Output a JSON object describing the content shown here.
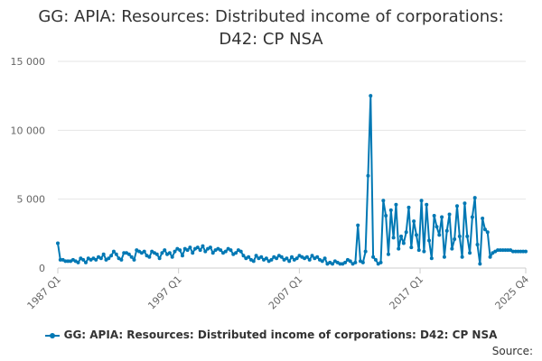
{
  "chart_data": {
    "type": "line",
    "title_line1": "GG: APIA: Resources: Distributed income of corporations:",
    "title_line2": "D42: CP NSA",
    "xlabel": "",
    "ylabel": "",
    "ylim": [
      0,
      15000
    ],
    "yticks": [
      0,
      5000,
      10000,
      15000
    ],
    "ytick_labels": [
      "0",
      "5 000",
      "10 000",
      "15 000"
    ],
    "xticks": [
      "1987 Q1",
      "1997 Q1",
      "2007 Q1",
      "2017 Q1",
      "2025 Q4"
    ],
    "x_start": "1987 Q1",
    "x_end": "2025 Q4",
    "grid": true,
    "legend_position": "bottom",
    "color": "#0078b4",
    "series": [
      {
        "name": "GG: APIA: Resources: Distributed income of corporations: D42: CP NSA",
        "values": [
          1800,
          600,
          600,
          500,
          500,
          500,
          600,
          500,
          400,
          700,
          600,
          400,
          700,
          600,
          700,
          600,
          800,
          700,
          1000,
          600,
          700,
          900,
          1200,
          1000,
          700,
          600,
          1100,
          1100,
          1000,
          800,
          600,
          1300,
          1200,
          1100,
          1200,
          900,
          800,
          1200,
          1100,
          1000,
          700,
          1100,
          1300,
          1000,
          1100,
          800,
          1200,
          1400,
          1300,
          900,
          1400,
          1300,
          1500,
          1100,
          1400,
          1500,
          1300,
          1600,
          1200,
          1400,
          1500,
          1100,
          1300,
          1400,
          1300,
          1100,
          1200,
          1400,
          1300,
          1000,
          1100,
          1300,
          1200,
          900,
          700,
          800,
          600,
          500,
          900,
          700,
          800,
          600,
          700,
          500,
          600,
          800,
          700,
          900,
          800,
          600,
          700,
          500,
          800,
          600,
          700,
          900,
          800,
          700,
          800,
          600,
          900,
          700,
          800,
          600,
          500,
          700,
          300,
          400,
          300,
          500,
          400,
          300,
          300,
          400,
          600,
          500,
          300,
          400,
          3100,
          500,
          400,
          1200,
          6700,
          12500,
          800,
          600,
          300,
          400,
          4900,
          3800,
          1000,
          4200,
          2200,
          4600,
          1400,
          2300,
          1800,
          2600,
          4400,
          1500,
          3400,
          2400,
          1300,
          4900,
          1200,
          4600,
          2000,
          700,
          3800,
          3000,
          2400,
          3700,
          800,
          2700,
          3900,
          1400,
          2100,
          4500,
          2300,
          800,
          4700,
          2300,
          1100,
          3700,
          5100,
          1700,
          300,
          3600,
          2800,
          2600,
          800,
          1100,
          1200,
          1300,
          1300,
          1300,
          1300,
          1300,
          1300,
          1200,
          1200,
          1200,
          1200,
          1200,
          1200
        ]
      }
    ]
  },
  "legend": {
    "label": "GG: APIA: Resources: Distributed income of corporations: D42: CP NSA"
  },
  "source_label": "Source:"
}
